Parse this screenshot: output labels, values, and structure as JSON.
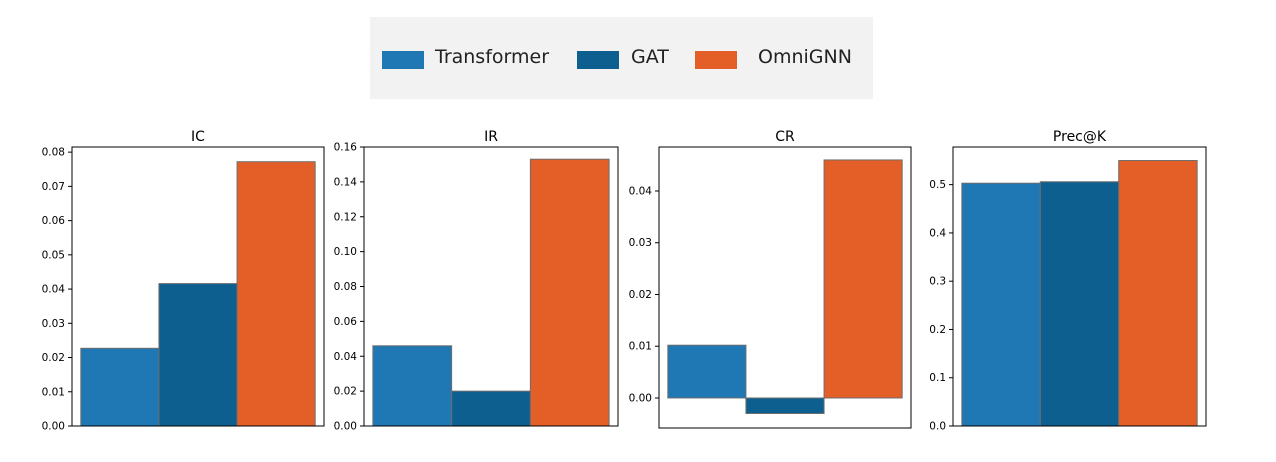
{
  "legend": [
    {
      "name": "Transformer",
      "color": "#1f77b4"
    },
    {
      "name": "GAT",
      "color": "#0d5f8f"
    },
    {
      "name": "OmniGNN",
      "color": "#e35f27"
    }
  ],
  "chart_data": [
    {
      "type": "bar",
      "title": "IC",
      "categories": [
        "Transformer",
        "GAT",
        "OmniGNN"
      ],
      "values": [
        0.0227,
        0.0416,
        0.0772
      ],
      "ylim": [
        0,
        0.0815
      ],
      "yticks": [
        0.0,
        0.01,
        0.02,
        0.03,
        0.04,
        0.05,
        0.06,
        0.07,
        0.08
      ],
      "ytick_labels": [
        "0.00",
        "0.01",
        "0.02",
        "0.03",
        "0.04",
        "0.05",
        "0.06",
        "0.07",
        "0.08"
      ],
      "grid": false
    },
    {
      "type": "bar",
      "title": "IR",
      "categories": [
        "Transformer",
        "GAT",
        "OmniGNN"
      ],
      "values": [
        0.046,
        0.02,
        0.153
      ],
      "ylim": [
        0,
        0.16
      ],
      "yticks": [
        0.0,
        0.02,
        0.04,
        0.06,
        0.08,
        0.1,
        0.12,
        0.14,
        0.16
      ],
      "ytick_labels": [
        "0.00",
        "0.02",
        "0.04",
        "0.06",
        "0.08",
        "0.10",
        "0.12",
        "0.14",
        "0.16"
      ],
      "grid": false
    },
    {
      "type": "bar",
      "title": "CR",
      "categories": [
        "Transformer",
        "GAT",
        "OmniGNN"
      ],
      "values": [
        0.0102,
        -0.003,
        0.046
      ],
      "ylim": [
        -0.0058,
        0.0485
      ],
      "yticks": [
        0.0,
        0.01,
        0.02,
        0.03,
        0.04
      ],
      "ytick_labels": [
        "0.00",
        "0.01",
        "0.02",
        "0.03",
        "0.04"
      ],
      "grid": false
    },
    {
      "type": "bar",
      "title": "Prec@K",
      "categories": [
        "Transformer",
        "GAT",
        "OmniGNN"
      ],
      "values": [
        0.503,
        0.506,
        0.55
      ],
      "ylim": [
        0,
        0.578
      ],
      "yticks": [
        0.0,
        0.1,
        0.2,
        0.3,
        0.4,
        0.5
      ],
      "ytick_labels": [
        "0.0",
        "0.1",
        "0.2",
        "0.3",
        "0.4",
        "0.5"
      ],
      "grid": false
    }
  ]
}
